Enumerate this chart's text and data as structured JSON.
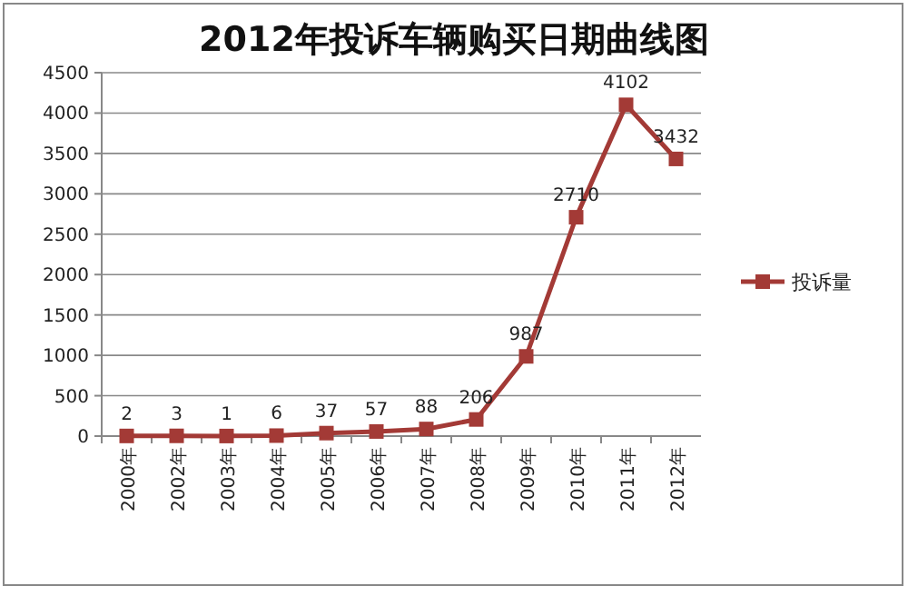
{
  "chart_data": {
    "type": "line",
    "title": "2012年投诉车辆购买日期曲线图",
    "categories": [
      "2000年",
      "2002年",
      "2003年",
      "2004年",
      "2005年",
      "2006年",
      "2007年",
      "2008年",
      "2009年",
      "2010年",
      "2011年",
      "2012年"
    ],
    "series": [
      {
        "name": "投诉量",
        "color": "#a33a36",
        "values": [
          2,
          3,
          1,
          6,
          37,
          57,
          88,
          206,
          987,
          2710,
          4102,
          3432
        ]
      }
    ],
    "ylim": [
      0,
      4500
    ],
    "yticks": [
      0,
      500,
      1000,
      1500,
      2000,
      2500,
      3000,
      3500,
      4000,
      4500
    ],
    "grid": "y",
    "legend": "right",
    "marker": "square",
    "line_style": "solid",
    "data_labels": true
  }
}
